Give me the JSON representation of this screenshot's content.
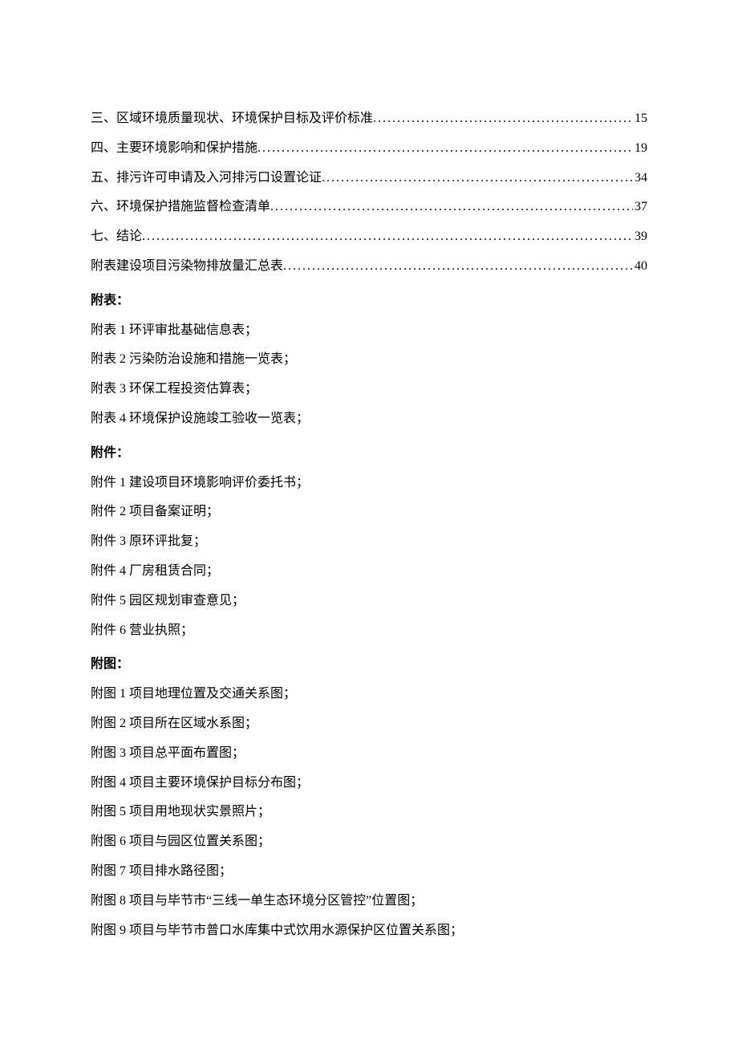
{
  "toc": [
    {
      "title": "三、区域环境质量现状、环境保护目标及评价标准",
      "page": "15"
    },
    {
      "title": "四、主要环境影响和保护措施",
      "page": "19"
    },
    {
      "title": "五、排污许可申请及入河排污口设置论证",
      "page": "34"
    },
    {
      "title": "六、环境保护措施监督检查清单",
      "page": "37"
    },
    {
      "title": "七、结论",
      "page": "39"
    },
    {
      "title": "附表建设项目污染物排放量汇总表",
      "page": "40"
    }
  ],
  "sections": [
    {
      "heading": "附表：",
      "items": [
        "附表 1 环评审批基础信息表；",
        "附表 2 污染防治设施和措施一览表；",
        "附表 3 环保工程投资估算表；",
        "附表 4 环境保护设施竣工验收一览表；"
      ]
    },
    {
      "heading": "附件：",
      "items": [
        "附件 1 建设项目环境影响评价委托书；",
        "附件 2 项目备案证明；",
        "附件 3 原环评批复；",
        "附件 4 厂房租赁合同；",
        "附件 5 园区规划审查意见；",
        "附件 6 营业执照；"
      ]
    },
    {
      "heading": "附图：",
      "items": [
        "附图 1 项目地理位置及交通关系图；",
        "附图 2 项目所在区域水系图；",
        "附图 3 项目总平面布置图；",
        "附图 4 项目主要环境保护目标分布图；",
        "附图 5 项目用地现状实景照片；",
        "附图 6 项目与园区位置关系图；",
        "附图 7 项目排水路径图；",
        "附图 8 项目与毕节市“三线一单生态环境分区管控”位置图；",
        "附图 9 项目与毕节市普口水库集中式饮用水源保护区位置关系图；"
      ]
    }
  ]
}
